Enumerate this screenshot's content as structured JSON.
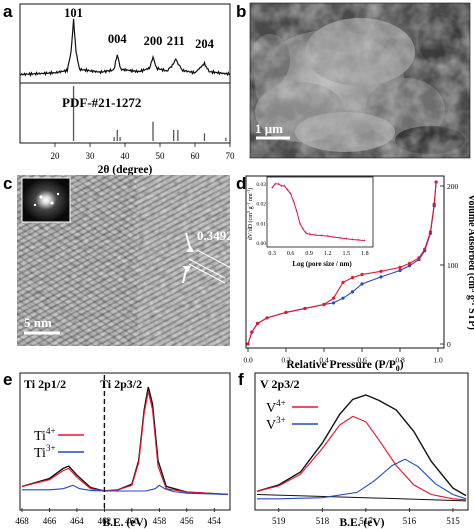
{
  "chart_data": [
    {
      "panel": "a",
      "type": "line",
      "xlabel": "2θ (degree)",
      "xlim": [
        10,
        70
      ],
      "xticks": [
        20,
        30,
        40,
        50,
        60,
        70
      ],
      "peak_labels": [
        {
          "text": "101",
          "x": 25.3
        },
        {
          "text": "004",
          "x": 37.8
        },
        {
          "text": "200",
          "x": 48.0
        },
        {
          "text": "211",
          "x": 54.5
        },
        {
          "text": "204",
          "x": 62.7
        }
      ],
      "reference_label": "PDF-#21-1272",
      "pattern": [
        [
          10,
          0.06
        ],
        [
          20,
          0.09
        ],
        [
          23.5,
          0.13
        ],
        [
          24.6,
          0.45
        ],
        [
          25.3,
          1.0
        ],
        [
          26.0,
          0.45
        ],
        [
          27.0,
          0.15
        ],
        [
          33,
          0.1
        ],
        [
          36.8,
          0.14
        ],
        [
          37.8,
          0.4
        ],
        [
          38.8,
          0.15
        ],
        [
          44,
          0.11
        ],
        [
          47.0,
          0.17
        ],
        [
          48.0,
          0.36
        ],
        [
          49.0,
          0.17
        ],
        [
          52,
          0.12
        ],
        [
          53.8,
          0.24
        ],
        [
          54.5,
          0.33
        ],
        [
          55.2,
          0.24
        ],
        [
          56.5,
          0.13
        ],
        [
          60,
          0.09
        ],
        [
          62.7,
          0.25
        ],
        [
          64,
          0.11
        ],
        [
          68,
          0.08
        ],
        [
          70,
          0.07
        ]
      ],
      "reference_lines": [
        [
          25.3,
          1.0
        ],
        [
          36.9,
          0.07
        ],
        [
          37.8,
          0.2
        ],
        [
          38.6,
          0.07
        ],
        [
          48.0,
          0.35
        ],
        [
          53.9,
          0.2
        ],
        [
          55.1,
          0.2
        ],
        [
          62.7,
          0.14
        ],
        [
          68.8,
          0.06
        ]
      ]
    },
    {
      "panel": "d",
      "type": "line",
      "xlabel": "Relative Pressure (P/P0)",
      "ylabel": "Volume Adsorbed (cm3 g-1 STP)",
      "xlim": [
        0,
        1.0
      ],
      "ylim": [
        0,
        200
      ],
      "xticks": [
        0.0,
        0.2,
        0.4,
        0.6,
        0.8,
        1.0
      ],
      "yticks": [
        0,
        100,
        200
      ],
      "series": [
        {
          "color": "#2148c8",
          "x": [
            0,
            0.02,
            0.05,
            0.1,
            0.2,
            0.3,
            0.4,
            0.45,
            0.5,
            0.55,
            0.6,
            0.7,
            0.8,
            0.85,
            0.9,
            0.93,
            0.96,
            0.98,
            0.99
          ],
          "y": [
            0,
            15,
            26,
            33,
            40,
            45,
            50,
            52,
            58,
            66,
            76,
            85,
            93,
            99,
            107,
            118,
            140,
            175,
            205
          ]
        },
        {
          "color": "#e8132f",
          "x": [
            0,
            0.02,
            0.05,
            0.1,
            0.2,
            0.3,
            0.4,
            0.45,
            0.5,
            0.55,
            0.6,
            0.7,
            0.8,
            0.85,
            0.9,
            0.93,
            0.96,
            0.98,
            0.99
          ],
          "y": [
            0,
            15,
            26,
            33,
            40,
            45,
            50,
            58,
            78,
            84,
            88,
            92,
            97,
            102,
            109,
            120,
            142,
            177,
            205
          ]
        }
      ],
      "inset": {
        "xlabel": "Log (pore size / nm)",
        "ylabel": "dV/dD (cm3 g-1 nm-1)",
        "xlim": [
          0.25,
          1.9
        ],
        "ylim": [
          0,
          0.032
        ],
        "xticks": [
          0.3,
          0.6,
          0.9,
          1.2,
          1.5,
          1.8
        ],
        "yticks": [
          0.0,
          0.01,
          0.02,
          0.03
        ],
        "x": [
          0.3,
          0.35,
          0.4,
          0.45,
          0.5,
          0.55,
          0.6,
          0.65,
          0.7,
          0.75,
          0.8,
          0.85,
          0.9,
          1.0,
          1.1,
          1.2,
          1.3,
          1.4,
          1.5,
          1.6,
          1.7,
          1.8
        ],
        "y": [
          0.028,
          0.03,
          0.03,
          0.029,
          0.029,
          0.027,
          0.025,
          0.021,
          0.016,
          0.01,
          0.007,
          0.005,
          0.0045,
          0.004,
          0.0038,
          0.0035,
          0.003,
          0.0026,
          0.0022,
          0.0018,
          0.0015,
          0.0012
        ]
      }
    },
    {
      "panel": "e",
      "type": "line",
      "xlabel": "B.E. (eV)",
      "xlim": [
        468,
        453
      ],
      "xticks": [
        468,
        466,
        464,
        462,
        460,
        458,
        456,
        454
      ],
      "region_labels": [
        "Ti 2p1/2",
        "Ti 2p3/2"
      ],
      "dashed_line_x": 462,
      "legend": [
        {
          "label": "Ti",
          "sup": "4+",
          "color": "#e8132f"
        },
        {
          "label": "Ti",
          "sup": "3+",
          "color": "#2148c8"
        }
      ],
      "envelope": [
        [
          468,
          0.12
        ],
        [
          466,
          0.19
        ],
        [
          465,
          0.28
        ],
        [
          464.6,
          0.3
        ],
        [
          464,
          0.22
        ],
        [
          463,
          0.11
        ],
        [
          462,
          0.08
        ],
        [
          461,
          0.09
        ],
        [
          460,
          0.14
        ],
        [
          459.5,
          0.35
        ],
        [
          459.1,
          0.8
        ],
        [
          458.8,
          1.0
        ],
        [
          458.5,
          0.85
        ],
        [
          458.1,
          0.35
        ],
        [
          457.5,
          0.12
        ],
        [
          456,
          0.07
        ],
        [
          453,
          0.05
        ]
      ],
      "ti4": [
        [
          468,
          0.12
        ],
        [
          466,
          0.18
        ],
        [
          465,
          0.26
        ],
        [
          464.6,
          0.28
        ],
        [
          464,
          0.2
        ],
        [
          463,
          0.1
        ],
        [
          462,
          0.08
        ],
        [
          461,
          0.09
        ],
        [
          460,
          0.13
        ],
        [
          459.5,
          0.33
        ],
        [
          459.1,
          0.77
        ],
        [
          458.8,
          0.96
        ],
        [
          458.5,
          0.8
        ],
        [
          458.1,
          0.3
        ],
        [
          457.5,
          0.1
        ],
        [
          456,
          0.07
        ],
        [
          453,
          0.05
        ]
      ],
      "ti3": [
        [
          468,
          0.09
        ],
        [
          466,
          0.09
        ],
        [
          465,
          0.1
        ],
        [
          464.3,
          0.13
        ],
        [
          463.8,
          0.1
        ],
        [
          463,
          0.085
        ],
        [
          462,
          0.08
        ],
        [
          459,
          0.08
        ],
        [
          458.3,
          0.1
        ],
        [
          458.0,
          0.13
        ],
        [
          457.6,
          0.1
        ],
        [
          457,
          0.075
        ],
        [
          456,
          0.06
        ],
        [
          453,
          0.05
        ]
      ]
    },
    {
      "panel": "f",
      "type": "line",
      "xlabel": "B.E. (eV)",
      "xlim": [
        519.5,
        514.7
      ],
      "xticks": [
        519,
        518,
        517,
        516,
        515
      ],
      "region_labels": [
        "V 2p3/2"
      ],
      "legend": [
        {
          "label": "V",
          "sup": "4+",
          "color": "#e8132f"
        },
        {
          "label": "V",
          "sup": "3+",
          "color": "#2148c8"
        }
      ],
      "envelope": [
        [
          519.5,
          0.1
        ],
        [
          519,
          0.16
        ],
        [
          518.5,
          0.28
        ],
        [
          518,
          0.55
        ],
        [
          517.6,
          0.82
        ],
        [
          517.3,
          0.96
        ],
        [
          517.0,
          1.0
        ],
        [
          516.7,
          0.95
        ],
        [
          516.3,
          0.86
        ],
        [
          515.9,
          0.66
        ],
        [
          515.5,
          0.38
        ],
        [
          515.0,
          0.13
        ],
        [
          514.7,
          0.06
        ]
      ],
      "v4": [
        [
          519.5,
          0.1
        ],
        [
          519,
          0.15
        ],
        [
          518.5,
          0.26
        ],
        [
          518,
          0.5
        ],
        [
          517.6,
          0.72
        ],
        [
          517.3,
          0.8
        ],
        [
          517.0,
          0.75
        ],
        [
          516.7,
          0.58
        ],
        [
          516.3,
          0.34
        ],
        [
          515.9,
          0.16
        ],
        [
          515.5,
          0.07
        ],
        [
          515.0,
          0.03
        ],
        [
          514.7,
          0.02
        ]
      ],
      "v3": [
        [
          519.5,
          0.03
        ],
        [
          519,
          0.03
        ],
        [
          518,
          0.04
        ],
        [
          517.2,
          0.09
        ],
        [
          516.8,
          0.2
        ],
        [
          516.4,
          0.34
        ],
        [
          516.1,
          0.4
        ],
        [
          515.8,
          0.33
        ],
        [
          515.4,
          0.17
        ],
        [
          515.0,
          0.07
        ],
        [
          514.7,
          0.03
        ]
      ],
      "background": [
        [
          519.5,
          0.07
        ],
        [
          517,
          0.04
        ],
        [
          514.7,
          0.01
        ]
      ]
    }
  ],
  "panels": {
    "a": "a",
    "b": "b",
    "c": "c",
    "d": "d",
    "e": "e",
    "f": "f"
  },
  "images": {
    "sem_scale": "1 μm",
    "tem_scale": "5 nm",
    "tem_spacing": "0.3492 nm"
  },
  "colors": {
    "red": "#e8132f",
    "blue": "#2148c8",
    "black": "#111111"
  }
}
